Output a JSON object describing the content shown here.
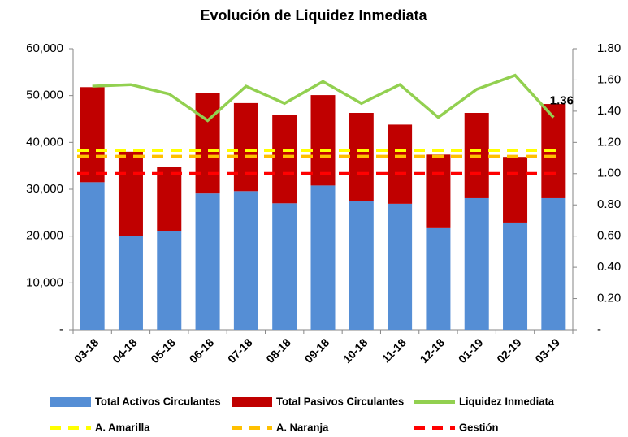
{
  "chart_data": {
    "type": "bar",
    "stacked": true,
    "title": "Evolución de Liquidez Inmediata",
    "categories": [
      "03-18",
      "04-18",
      "05-18",
      "06-18",
      "07-18",
      "08-18",
      "09-18",
      "10-18",
      "11-18",
      "12-18",
      "01-19",
      "02-19",
      "03-19"
    ],
    "series": [
      {
        "name": "Total Activos Circulantes",
        "style": "bar",
        "color": "#558ed5",
        "values": [
          31500,
          20100,
          21100,
          29100,
          29600,
          27000,
          30800,
          27400,
          26900,
          21700,
          28100,
          22900,
          28100
        ]
      },
      {
        "name": "Total Pasivos Circulantes",
        "style": "bar",
        "color": "#c00000",
        "values": [
          20300,
          17900,
          13700,
          21500,
          18800,
          18800,
          19300,
          18900,
          16900,
          15700,
          18200,
          14000,
          20100
        ]
      },
      {
        "name": "Liquidez Inmediata",
        "style": "line",
        "axis": "y2",
        "color": "#92d050",
        "values": [
          1.56,
          1.57,
          1.51,
          1.34,
          1.56,
          1.45,
          1.59,
          1.45,
          1.57,
          1.36,
          1.54,
          1.63,
          1.36
        ],
        "value_labels": [
          null,
          null,
          null,
          null,
          null,
          null,
          null,
          null,
          null,
          null,
          null,
          null,
          "1.36"
        ]
      },
      {
        "name": "A. Amarilla",
        "style": "dashed",
        "axis": "y2",
        "color": "#ffff00",
        "values": [
          1.15,
          1.15,
          1.15,
          1.15,
          1.15,
          1.15,
          1.15,
          1.15,
          1.15,
          1.15,
          1.15,
          1.15,
          1.15
        ]
      },
      {
        "name": "A. Naranja",
        "style": "dashed",
        "axis": "y2",
        "color": "#ffc000",
        "values": [
          1.11,
          1.11,
          1.11,
          1.11,
          1.11,
          1.11,
          1.11,
          1.11,
          1.11,
          1.11,
          1.11,
          1.11,
          1.11
        ]
      },
      {
        "name": "Gestión",
        "style": "dashed",
        "axis": "y2",
        "color": "#ff0000",
        "values": [
          1,
          1,
          1,
          1,
          1,
          1,
          1,
          1,
          1,
          1,
          1,
          1,
          1
        ]
      }
    ],
    "ylim": [
      0,
      60000
    ],
    "yticks": [
      {
        "value": 0,
        "label": "-"
      },
      {
        "value": 10000,
        "label": "10,000"
      },
      {
        "value": 20000,
        "label": "20,000"
      },
      {
        "value": 30000,
        "label": "30,000"
      },
      {
        "value": 40000,
        "label": "40,000"
      },
      {
        "value": 50000,
        "label": "50,000"
      },
      {
        "value": 60000,
        "label": "60,000"
      }
    ],
    "y2lim": [
      0,
      1.8
    ],
    "y2ticks": [
      {
        "value": 0,
        "label": "-"
      },
      {
        "value": 0.2,
        "label": "0.20"
      },
      {
        "value": 0.4,
        "label": "0.40"
      },
      {
        "value": 0.6,
        "label": "0.60"
      },
      {
        "value": 0.8,
        "label": "0.80"
      },
      {
        "value": 1,
        "label": "1.00"
      },
      {
        "value": 1.2,
        "label": "1.20"
      },
      {
        "value": 1.4,
        "label": "1.40"
      },
      {
        "value": 1.6,
        "label": "1.60"
      },
      {
        "value": 1.8,
        "label": "1.80"
      }
    ],
    "grid": false
  }
}
